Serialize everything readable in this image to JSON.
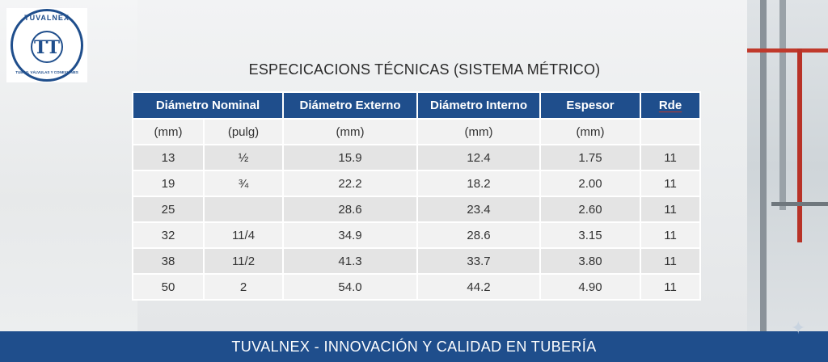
{
  "logo": {
    "top_text": "TUVALNEX",
    "monogram": "TT",
    "bottom_text": "TUBOS, VÁLVULAS Y CONEXIONES"
  },
  "title": "ESPECICACIONS TÉCNICAS (SISTEMA MÉTRICO)",
  "table": {
    "headers": {
      "nominal": "Diámetro Nominal",
      "externo": "Diámetro Externo",
      "interno": "Diámetro Interno",
      "espesor": "Espesor",
      "rde": "Rde"
    },
    "units": [
      "(mm)",
      "(pulg)",
      "(mm)",
      "(mm)",
      "(mm)",
      ""
    ],
    "rows": [
      [
        "13",
        "½",
        "15.9",
        "12.4",
        "1.75",
        "11"
      ],
      [
        "19",
        "¾",
        "22.2",
        "18.2",
        "2.00",
        "11"
      ],
      [
        "25",
        "",
        "28.6",
        "23.4",
        "2.60",
        "11"
      ],
      [
        "32",
        "11/4",
        "34.9",
        "28.6",
        "3.15",
        "11"
      ],
      [
        "38",
        "11/2",
        "41.3",
        "33.7",
        "3.80",
        "11"
      ],
      [
        "50",
        "2",
        "54.0",
        "44.2",
        "4.90",
        "11"
      ]
    ]
  },
  "footer": "TUVALNEX - INNOVACIÓN Y CALIDAD EN TUBERÍA",
  "colors": {
    "brand_blue": "#1f4e8c"
  },
  "icons": {
    "corner": "sparkle-icon"
  }
}
